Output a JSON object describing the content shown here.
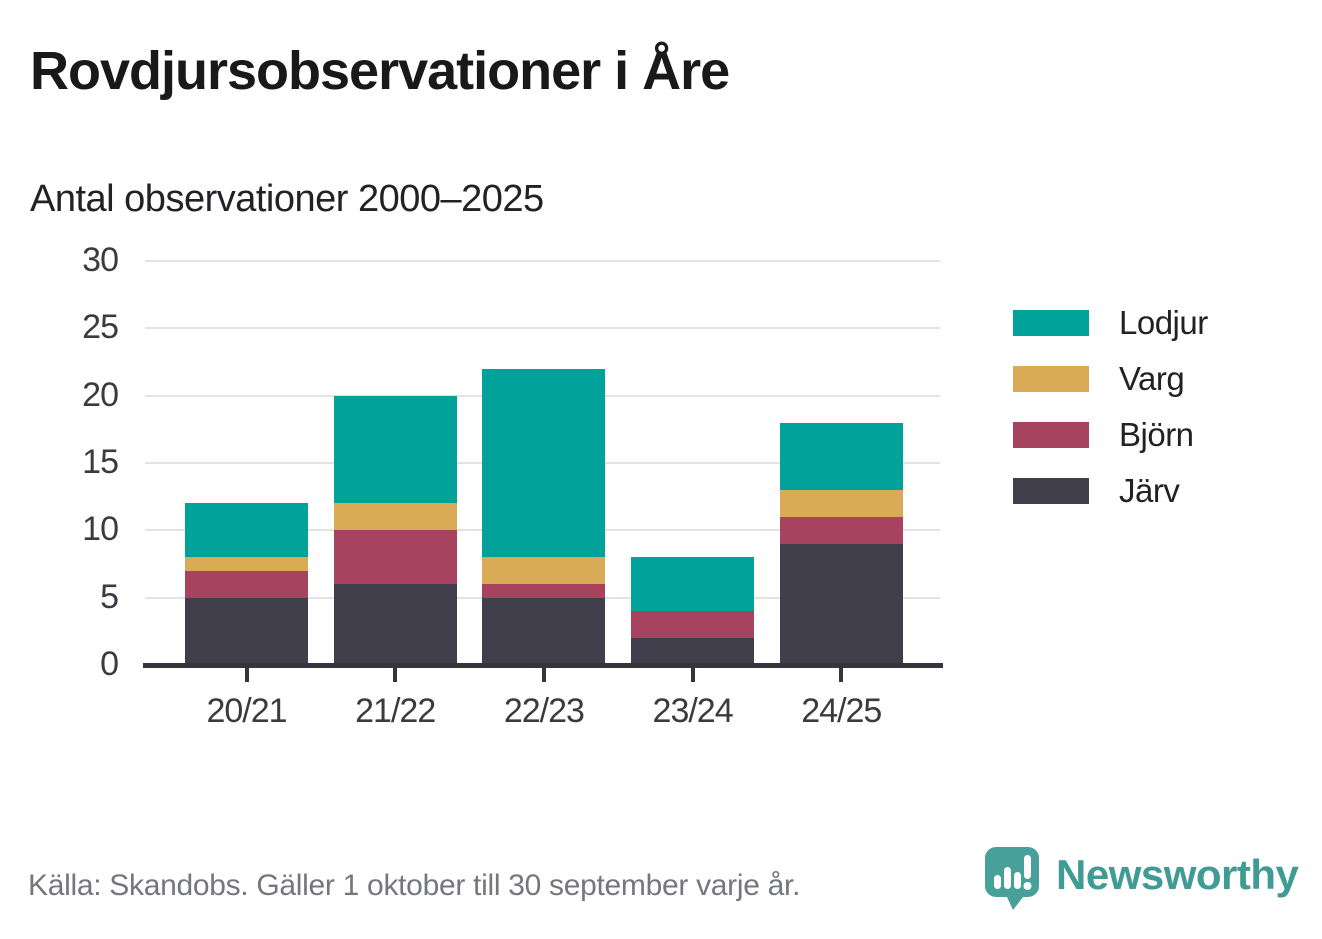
{
  "header": {
    "title": "Rovdjursobservationer i Åre",
    "subtitle": "Antal observationer 2000–2025"
  },
  "chart_data": {
    "type": "bar",
    "stacked": true,
    "title": "Rovdjursobservationer i Åre",
    "subtitle": "Antal observationer 2000–2025",
    "xlabel": "",
    "ylabel": "Antal observationer",
    "categories": [
      "20/21",
      "21/22",
      "22/23",
      "23/24",
      "24/25"
    ],
    "series": [
      {
        "name": "Järv",
        "color": "#413e4c",
        "values": [
          5,
          6,
          5,
          2,
          9
        ]
      },
      {
        "name": "Björn",
        "color": "#a8435f",
        "values": [
          2,
          4,
          1,
          2,
          2
        ]
      },
      {
        "name": "Varg",
        "color": "#d9ab57",
        "values": [
          1,
          2,
          2,
          0,
          2
        ]
      },
      {
        "name": "Lodjur",
        "color": "#00a29a",
        "values": [
          4,
          8,
          14,
          4,
          5
        ]
      }
    ],
    "totals": [
      12,
      20,
      22,
      8,
      18
    ],
    "ylim": [
      0,
      30
    ],
    "yticks": [
      0,
      5,
      10,
      15,
      20,
      25,
      30
    ],
    "grid": true,
    "legend_position": "right",
    "legend_order": [
      "Lodjur",
      "Varg",
      "Björn",
      "Järv"
    ]
  },
  "footer": {
    "source": "Källa: Skandobs. Gäller 1 oktober till 30 september varje år.",
    "brand": "Newsworthy"
  },
  "colors": {
    "lodjur": "#00a29a",
    "varg": "#d9ab57",
    "bjorn": "#a8435f",
    "jarv": "#413e4c",
    "gridline": "#e3e3e3",
    "axis": "#37343e",
    "tick_text": "#3b3a40",
    "title_text": "#191919",
    "source_text": "#75767e",
    "brand_teal": "#3f9b93"
  }
}
